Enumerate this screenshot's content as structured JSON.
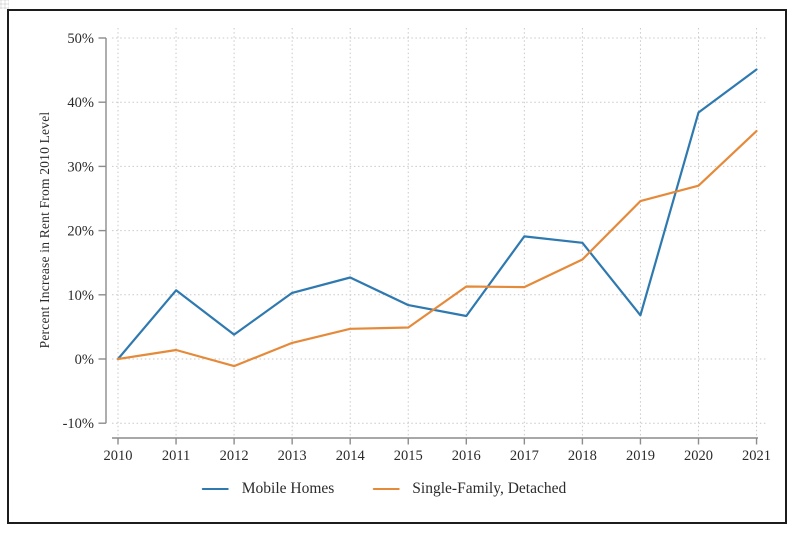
{
  "page": {
    "background": "#ffffff",
    "frame_border_color": "#1c1c1c"
  },
  "style": {
    "grid_color": "#c9c9c9",
    "axis_color": "#8c8c8c",
    "tick_text_color": "#2b2b2b"
  },
  "chart_data": {
    "type": "line",
    "title": "",
    "xlabel": "",
    "ylabel": "Percent Increase in Rent From 2010 Level",
    "x": [
      2010,
      2011,
      2012,
      2013,
      2014,
      2015,
      2016,
      2017,
      2018,
      2019,
      2020,
      2021
    ],
    "x_tick_labels": [
      "2010",
      "2011",
      "2012",
      "2013",
      "2014",
      "2015",
      "2016",
      "2017",
      "2018",
      "2019",
      "2020",
      "2021"
    ],
    "y_ticks": [
      -10,
      0,
      10,
      20,
      30,
      40,
      50
    ],
    "y_tick_labels": [
      "-10%",
      "0%",
      "10%",
      "20%",
      "30%",
      "40%",
      "50%"
    ],
    "ylim": [
      -10,
      50
    ],
    "grid": "dotted both axes",
    "legend_position": "bottom-center",
    "series": [
      {
        "name": "Mobile Homes",
        "color": "#2e79b0",
        "values": [
          0,
          10.7,
          3.8,
          10.3,
          12.7,
          8.4,
          6.7,
          19.1,
          18.1,
          6.8,
          38.4,
          45.1
        ]
      },
      {
        "name": "Single-Family, Detached",
        "color": "#e58a3a",
        "values": [
          0,
          1.4,
          -1.1,
          2.5,
          4.7,
          4.9,
          11.3,
          11.2,
          15.5,
          24.6,
          27.0,
          35.5
        ]
      }
    ]
  }
}
